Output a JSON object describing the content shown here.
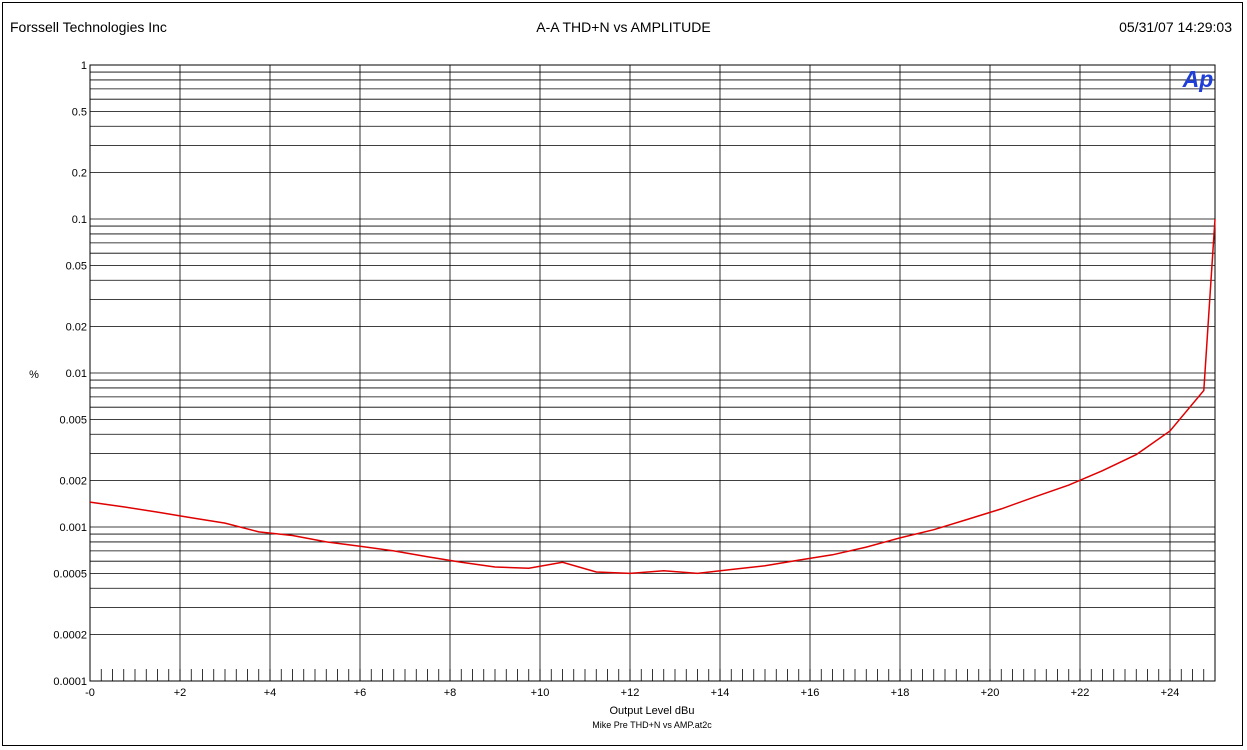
{
  "header": {
    "company": "Forssell Technologies Inc",
    "title": "A-A THD+N vs AMPLITUDE",
    "timestamp": "05/31/07 14:29:03"
  },
  "logo": {
    "text": "Ap",
    "color": "#1f3fd8"
  },
  "colors": {
    "series": "#e00000",
    "grid": "#000000"
  },
  "chart_data": {
    "type": "line",
    "title": "A-A THD+N vs AMPLITUDE",
    "xlabel": "Output Level dBu",
    "ylabel": "%",
    "subtitle": "Mike Pre THD+N vs AMP.at2c",
    "xlim": [
      0,
      25
    ],
    "ylim": [
      0.0001,
      1
    ],
    "yscale": "log",
    "grid": true,
    "x_ticks": [
      0,
      2,
      4,
      6,
      8,
      10,
      12,
      14,
      16,
      18,
      20,
      22,
      24
    ],
    "x_tick_labels": [
      "-0",
      "+2",
      "+4",
      "+6",
      "+8",
      "+10",
      "+12",
      "+14",
      "+16",
      "+18",
      "+20",
      "+22",
      "+24"
    ],
    "y_ticks": [
      1,
      0.5,
      0.2,
      0.1,
      0.05,
      0.02,
      0.01,
      0.005,
      0.002,
      0.001,
      0.0005,
      0.0002,
      0.0001
    ],
    "y_tick_labels": [
      "1",
      "0.5",
      "0.2",
      "0.1",
      "0.05",
      "0.02",
      "0.01",
      "0.005",
      "0.002",
      "0.001",
      "0.0005",
      "0.0002",
      "0.0001"
    ],
    "series": [
      {
        "x": [
          0,
          0.75,
          1.5,
          2.25,
          3,
          3.75,
          4.5,
          5.25,
          6,
          6.75,
          7.5,
          8.25,
          9,
          9.75,
          10.5,
          11.25,
          12,
          12.75,
          13.5,
          14.25,
          15,
          15.75,
          16.5,
          17.25,
          18,
          18.75,
          19.5,
          20.25,
          21,
          21.75,
          22.5,
          23.25,
          24,
          24.75,
          25
        ],
        "y": [
          0.00145,
          0.00135,
          0.00125,
          0.00115,
          0.00106,
          0.00093,
          0.00088,
          0.0008,
          0.00075,
          0.0007,
          0.00064,
          0.00059,
          0.00055,
          0.00054,
          0.00059,
          0.00051,
          0.0005,
          0.00052,
          0.0005,
          0.00053,
          0.00056,
          0.00061,
          0.00066,
          0.00074,
          0.00085,
          0.00096,
          0.00112,
          0.00131,
          0.00157,
          0.00187,
          0.00232,
          0.00295,
          0.0042,
          0.0077,
          0.1
        ]
      }
    ]
  }
}
